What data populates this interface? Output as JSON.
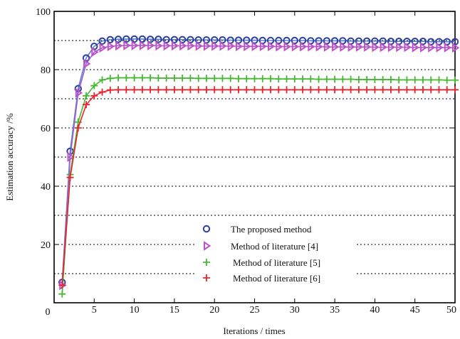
{
  "chart_data": {
    "type": "line",
    "xlabel": "Iterations / times",
    "ylabel": "Estimation accuracy /%",
    "xlim": [
      0,
      50
    ],
    "ylim": [
      0,
      100
    ],
    "xticks": [
      "0",
      "5",
      "10",
      "15",
      "20",
      "25",
      "30",
      "35",
      "40",
      "45",
      "50"
    ],
    "yticks": [
      "20",
      "40",
      "60",
      "80",
      "100"
    ],
    "grid": "dotted horizontal lines",
    "legend_placement": "lower-right",
    "x": [
      1,
      2,
      3,
      4,
      5,
      6,
      7,
      8,
      9,
      10,
      11,
      12,
      13,
      14,
      15,
      16,
      17,
      18,
      19,
      20,
      21,
      22,
      23,
      24,
      25,
      26,
      27,
      28,
      29,
      30,
      31,
      32,
      33,
      34,
      35,
      36,
      37,
      38,
      39,
      40,
      41,
      42,
      43,
      44,
      45,
      46,
      47,
      48,
      49,
      50
    ],
    "series": [
      {
        "name": "The proposed method",
        "marker": "circle",
        "color": "#2b3f9e",
        "line_color": "#5b7fd6",
        "values": [
          7,
          52,
          73.5,
          84,
          88,
          89.8,
          90.3,
          90.4,
          90.5,
          90.5,
          90.5,
          90.4,
          90.4,
          90.3,
          90.3,
          90.3,
          90.3,
          90.2,
          90.2,
          90.2,
          90.2,
          90.1,
          90.1,
          90.1,
          90.1,
          90,
          90,
          90,
          90,
          90,
          90,
          89.9,
          89.9,
          89.9,
          89.9,
          89.9,
          89.8,
          89.8,
          89.8,
          89.8,
          89.8,
          89.7,
          89.7,
          89.7,
          89.7,
          89.7,
          89.6,
          89.6,
          89.6,
          89.6
        ]
      },
      {
        "name": "Method of literature [4]",
        "marker": "triangle-right",
        "color": "#c050c8",
        "line_color": "#9b5fd0",
        "values": [
          6,
          50,
          72,
          82,
          86,
          87.5,
          88,
          88.2,
          88.3,
          88.3,
          88.3,
          88.3,
          88.2,
          88.2,
          88.2,
          88.2,
          88.2,
          88.1,
          88.1,
          88.1,
          88.1,
          88.1,
          88,
          88,
          88,
          88,
          88,
          87.9,
          87.9,
          87.9,
          87.9,
          87.9,
          87.9,
          87.8,
          87.8,
          87.8,
          87.8,
          87.8,
          87.8,
          87.7,
          87.7,
          87.7,
          87.7,
          87.7,
          87.6,
          87.6,
          87.6,
          87.6,
          87.6,
          87.5
        ]
      },
      {
        "name": "Method of literature [5]",
        "marker": "plus",
        "color": "#44b830",
        "line_color": "#44b830",
        "values": [
          3,
          44,
          62,
          71,
          74.5,
          76.5,
          77,
          77.2,
          77.2,
          77.2,
          77.2,
          77.2,
          77.1,
          77.1,
          77.1,
          77.1,
          77.1,
          77,
          77,
          77,
          77,
          77,
          76.9,
          76.9,
          76.9,
          76.9,
          76.9,
          76.8,
          76.8,
          76.8,
          76.8,
          76.8,
          76.7,
          76.7,
          76.7,
          76.7,
          76.7,
          76.6,
          76.6,
          76.6,
          76.6,
          76.6,
          76.5,
          76.5,
          76.5,
          76.5,
          76.5,
          76.5,
          76.4,
          76.4
        ]
      },
      {
        "name": "Method of literature [6]",
        "marker": "plus",
        "color": "#e8242c",
        "line_color": "#e8242c",
        "values": [
          6,
          43,
          60,
          68,
          71,
          72.3,
          73,
          73.1,
          73.1,
          73.1,
          73.1,
          73.1,
          73.1,
          73.1,
          73.1,
          73.1,
          73.1,
          73.1,
          73.1,
          73.1,
          73.1,
          73.1,
          73.1,
          73.1,
          73.1,
          73.1,
          73.1,
          73.1,
          73.1,
          73.1,
          73.1,
          73.1,
          73.1,
          73.1,
          73.1,
          73.1,
          73.1,
          73.1,
          73.1,
          73.1,
          73.1,
          73.1,
          73.1,
          73.1,
          73.1,
          73.1,
          73.1,
          73.1,
          73.1,
          73.1
        ]
      }
    ]
  }
}
